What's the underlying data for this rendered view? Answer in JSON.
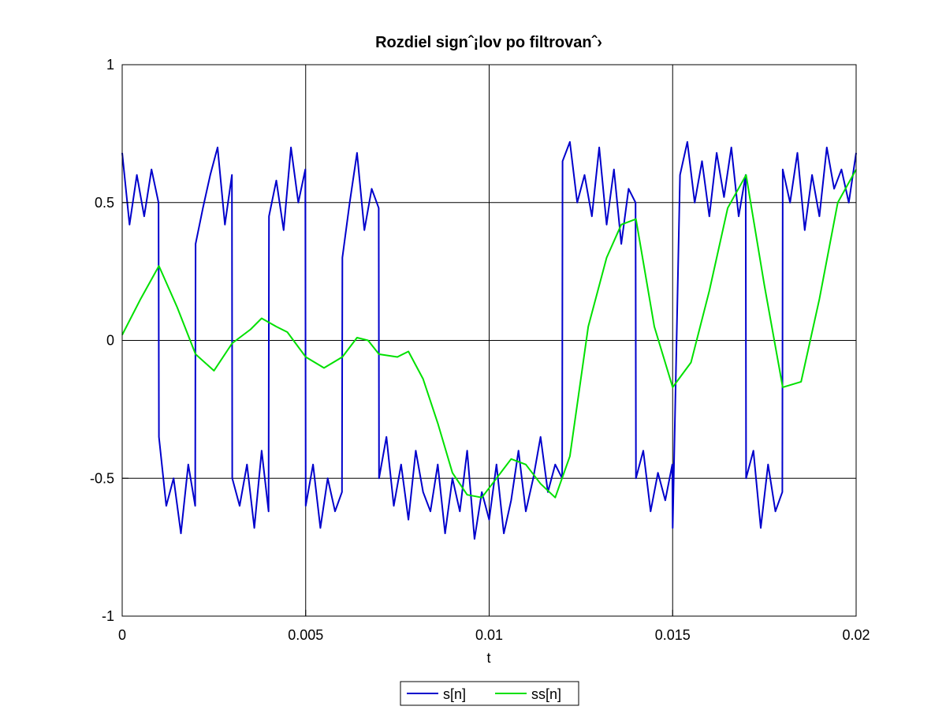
{
  "chart_data": {
    "type": "line",
    "title": "Rozdiel signˆ¡lov po filtrovanˆ›",
    "xlabel": "t",
    "ylabel": "",
    "xlim": [
      0,
      0.02
    ],
    "ylim": [
      -1,
      1
    ],
    "xticks": [
      0,
      0.005,
      0.01,
      0.015,
      0.02
    ],
    "xtick_labels": [
      "0",
      "0.005",
      "0.01",
      "0.015",
      "0.02"
    ],
    "yticks": [
      -1,
      -0.5,
      0,
      0.5,
      1
    ],
    "ytick_labels": [
      "-1",
      "-0.5",
      "0",
      "0.5",
      "1"
    ],
    "grid": true,
    "legend_position": "bottom-center, outside",
    "series": [
      {
        "name": "s[n]",
        "color": "#0000cc",
        "x": [
          0,
          0.0002,
          0.0004,
          0.0006,
          0.0008,
          0.00099,
          0.001,
          0.0012,
          0.0014,
          0.0016,
          0.0018,
          0.00199,
          0.002,
          0.0022,
          0.0024,
          0.0026,
          0.0028,
          0.00299,
          0.003,
          0.0032,
          0.0034,
          0.0036,
          0.0038,
          0.00399,
          0.004,
          0.0042,
          0.0044,
          0.0046,
          0.0048,
          0.00499,
          0.005,
          0.0052,
          0.0054,
          0.0056,
          0.0058,
          0.00599,
          0.006,
          0.0062,
          0.0064,
          0.0066,
          0.0068,
          0.00699,
          0.007,
          0.0072,
          0.0074,
          0.0076,
          0.0078,
          0.008,
          0.0082,
          0.0084,
          0.0086,
          0.0088,
          0.009,
          0.0092,
          0.0094,
          0.0096,
          0.0098,
          0.01,
          0.0102,
          0.0104,
          0.0106,
          0.0108,
          0.011,
          0.0112,
          0.0114,
          0.0116,
          0.0118,
          0.01199,
          0.012,
          0.0122,
          0.0124,
          0.0126,
          0.0128,
          0.013,
          0.0132,
          0.0134,
          0.0136,
          0.0138,
          0.01399,
          0.014,
          0.0142,
          0.0144,
          0.0146,
          0.0148,
          0.01499,
          0.015,
          0.0152,
          0.0154,
          0.0156,
          0.0158,
          0.016,
          0.0162,
          0.0164,
          0.0166,
          0.0168,
          0.01699,
          0.017,
          0.0172,
          0.0174,
          0.0176,
          0.0178,
          0.01799,
          0.018,
          0.0182,
          0.0184,
          0.0186,
          0.0188,
          0.019,
          0.0192,
          0.0194,
          0.0196,
          0.0198,
          0.02
        ],
        "values": [
          0.68,
          0.42,
          0.6,
          0.45,
          0.62,
          0.5,
          -0.35,
          -0.6,
          -0.5,
          -0.7,
          -0.45,
          -0.6,
          0.35,
          0.48,
          0.6,
          0.7,
          0.42,
          0.6,
          -0.5,
          -0.6,
          -0.45,
          -0.68,
          -0.4,
          -0.62,
          0.45,
          0.58,
          0.4,
          0.7,
          0.5,
          0.62,
          -0.6,
          -0.45,
          -0.68,
          -0.5,
          -0.62,
          -0.55,
          0.3,
          0.5,
          0.68,
          0.4,
          0.55,
          0.48,
          -0.5,
          -0.35,
          -0.6,
          -0.45,
          -0.65,
          -0.4,
          -0.55,
          -0.62,
          -0.45,
          -0.7,
          -0.5,
          -0.62,
          -0.4,
          -0.72,
          -0.55,
          -0.65,
          -0.45,
          -0.7,
          -0.58,
          -0.4,
          -0.62,
          -0.5,
          -0.35,
          -0.55,
          -0.45,
          -0.5,
          0.65,
          0.72,
          0.5,
          0.6,
          0.45,
          0.7,
          0.42,
          0.62,
          0.35,
          0.55,
          0.5,
          -0.5,
          -0.4,
          -0.62,
          -0.48,
          -0.58,
          -0.45,
          -0.68,
          0.6,
          0.72,
          0.5,
          0.65,
          0.45,
          0.68,
          0.52,
          0.7,
          0.45,
          0.6,
          -0.5,
          -0.4,
          -0.68,
          -0.45,
          -0.62,
          -0.55,
          0.62,
          0.5,
          0.68,
          0.4,
          0.6,
          0.45,
          0.7,
          0.55,
          0.62,
          0.5,
          0.68
        ]
      },
      {
        "name": "ss[n]",
        "color": "#00e000",
        "x": [
          0,
          0.0005,
          0.001,
          0.0015,
          0.002,
          0.0025,
          0.003,
          0.0035,
          0.0038,
          0.0042,
          0.0045,
          0.005,
          0.0055,
          0.006,
          0.0064,
          0.0067,
          0.007,
          0.0075,
          0.0078,
          0.0082,
          0.0086,
          0.009,
          0.0094,
          0.0098,
          0.0102,
          0.0106,
          0.011,
          0.0114,
          0.0118,
          0.0122,
          0.0127,
          0.0132,
          0.0136,
          0.014,
          0.0145,
          0.015,
          0.0155,
          0.016,
          0.0165,
          0.017,
          0.0175,
          0.018,
          0.0185,
          0.019,
          0.0195,
          0.02
        ],
        "values": [
          0.02,
          0.15,
          0.27,
          0.12,
          -0.05,
          -0.11,
          -0.01,
          0.04,
          0.08,
          0.05,
          0.03,
          -0.06,
          -0.1,
          -0.06,
          0.01,
          0.0,
          -0.05,
          -0.06,
          -0.04,
          -0.14,
          -0.3,
          -0.48,
          -0.56,
          -0.57,
          -0.5,
          -0.43,
          -0.45,
          -0.52,
          -0.57,
          -0.42,
          0.05,
          0.3,
          0.42,
          0.44,
          0.05,
          -0.17,
          -0.08,
          0.18,
          0.48,
          0.6,
          0.2,
          -0.17,
          -0.15,
          0.15,
          0.5,
          0.62
        ]
      }
    ]
  }
}
